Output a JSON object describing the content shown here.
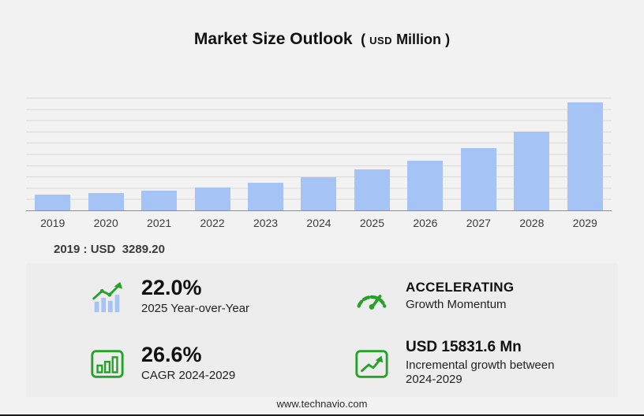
{
  "title": {
    "main": "Market Size Outlook",
    "open": "(",
    "usd": "USD",
    "word": "Million",
    "close": ")"
  },
  "chart_data": {
    "type": "bar",
    "title": "Market Size Outlook (USD Million)",
    "categories": [
      "2019",
      "2020",
      "2021",
      "2022",
      "2023",
      "2024",
      "2025",
      "2026",
      "2027",
      "2028",
      "2029"
    ],
    "values": [
      3289.2,
      3715,
      4240,
      4870,
      5780,
      7042,
      8591,
      10480,
      13100,
      16600,
      22874
    ],
    "xlabel": "",
    "ylabel": "",
    "ylim": [
      0,
      23800
    ],
    "grid": true,
    "bar_color": "#a6c3f5",
    "annotations": [
      "2019 : USD 3289.20"
    ]
  },
  "note": {
    "text": "2019 : USD  3289.20"
  },
  "stats": [
    {
      "value": "22.0%",
      "label": "2025 Year-over-Year",
      "icon": "bar-growth-icon"
    },
    {
      "value": "ACCELERATING",
      "label": "Growth Momentum",
      "icon": "speedometer-icon"
    },
    {
      "value": "26.6%",
      "label": "CAGR 2024-2029",
      "icon": "cagr-chart-icon"
    },
    {
      "value": "USD 15831.6 Mn",
      "label": "Incremental growth between 2024-2029",
      "icon": "incremental-growth-icon"
    }
  ],
  "footer": {
    "url": "www.technavio.com"
  },
  "colors": {
    "background": "#f2f2f2",
    "panel": "#ededed",
    "bar": "#a6c3f5",
    "accent_green": "#27a127"
  }
}
